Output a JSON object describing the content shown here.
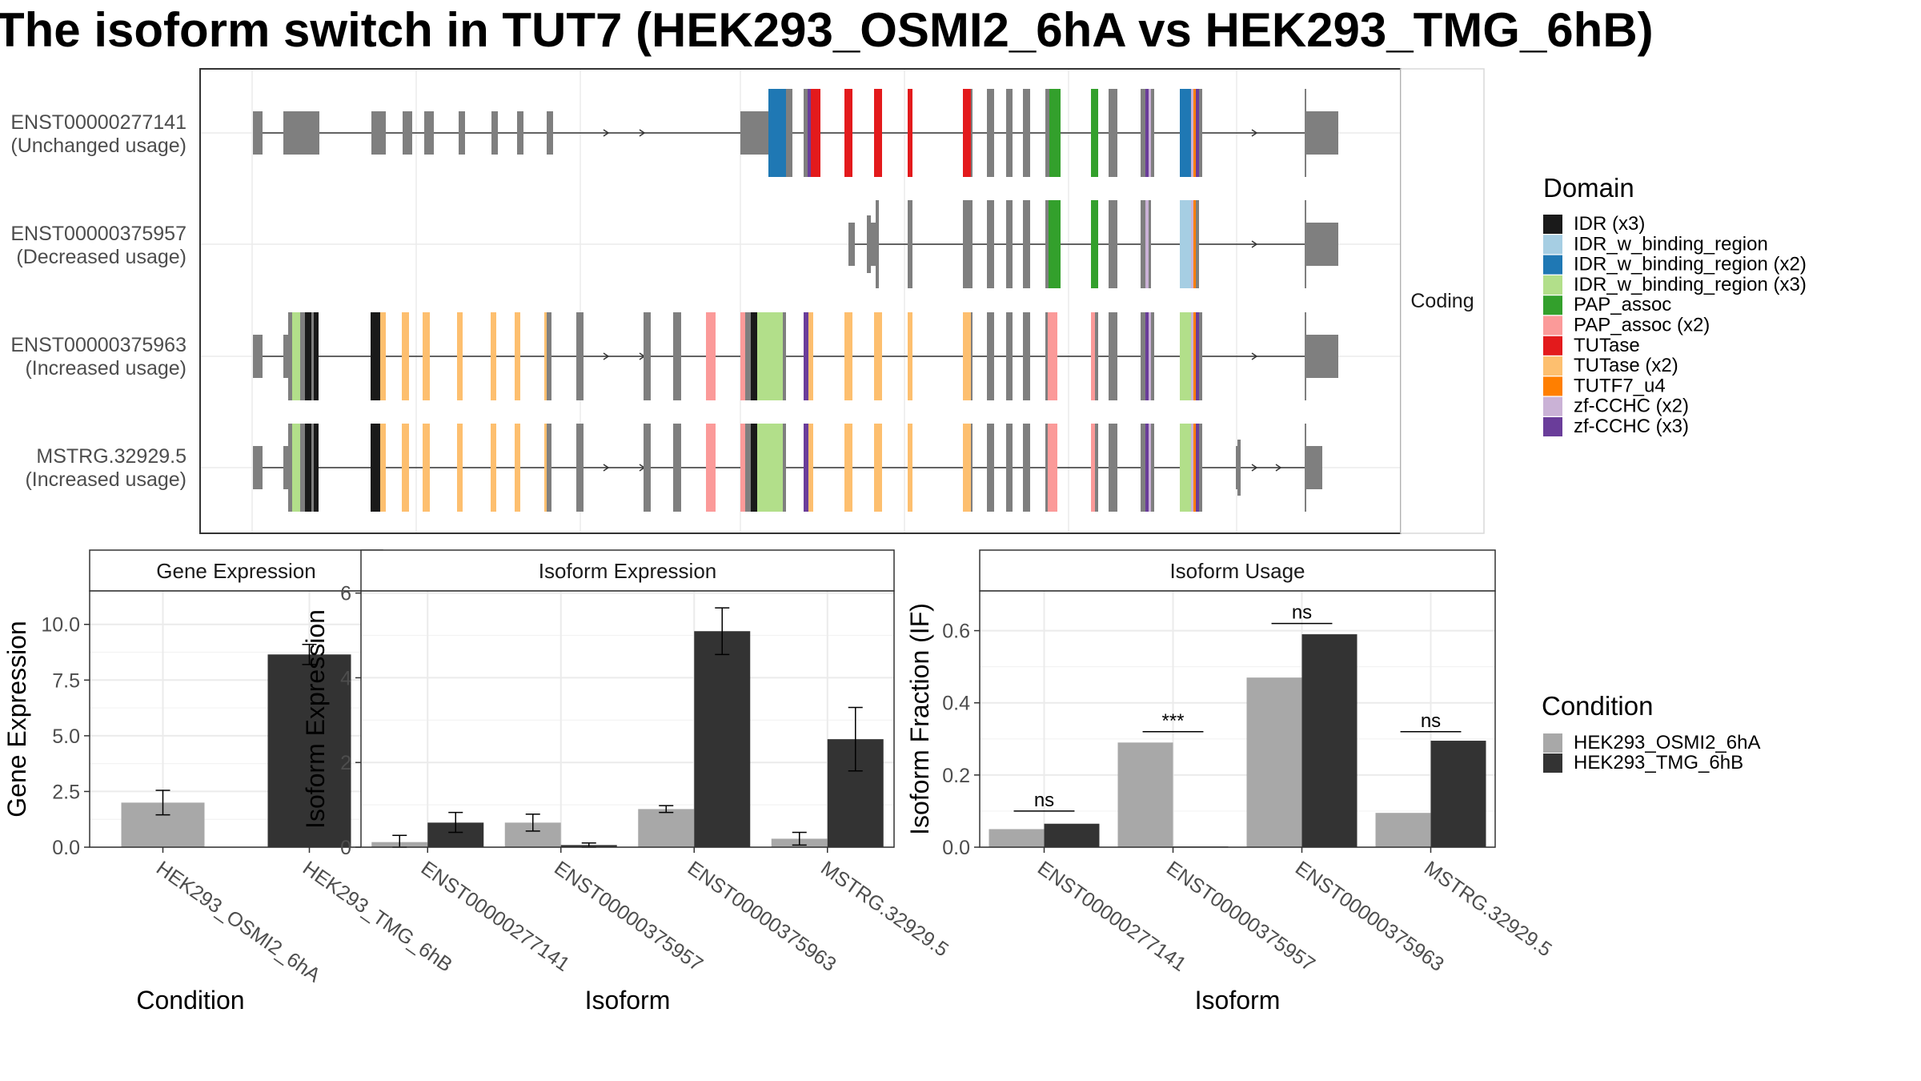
{
  "title": "The isoform switch in TUT7 (HEK293_OSMI2_6hA vs HEK293_TMG_6hB)",
  "colors": {
    "cond_a": "#a8a8a8",
    "cond_b": "#333333",
    "exon": "#7f7f7f",
    "IDR (x3)": "#1a1a1a",
    "IDR_w_binding_region": "#a6cee3",
    "IDR_w_binding_region (x2)": "#1f78b4",
    "IDR_w_binding_region (x3)": "#b2df8a",
    "PAP_assoc": "#33a02c",
    "PAP_assoc (x2)": "#fb9a99",
    "TUTase": "#e31a1c",
    "TUTase (x2)": "#fdbf6f",
    "TUTF7_u4": "#ff7f00",
    "zf-CCHC (x2)": "#cab2d6",
    "zf-CCHC (x3)": "#6a3d9a"
  },
  "structure": {
    "strip_label": "Coding",
    "transcripts": [
      {
        "id": "ENST00000277141",
        "usage": "(Unchanged usage)"
      },
      {
        "id": "ENST00000375957",
        "usage": "(Decreased usage)"
      },
      {
        "id": "ENST00000375963",
        "usage": "(Increased usage)"
      },
      {
        "id": "MSTRG.32929.5",
        "usage": "(Increased usage)"
      }
    ]
  },
  "legend": {
    "domain_title": "Domain",
    "domain_items": [
      "IDR (x3)",
      "IDR_w_binding_region",
      "IDR_w_binding_region (x2)",
      "IDR_w_binding_region (x3)",
      "PAP_assoc",
      "PAP_assoc (x2)",
      "TUTase",
      "TUTase (x2)",
      "TUTF7_u4",
      "zf-CCHC (x2)",
      "zf-CCHC (x3)"
    ],
    "condition_title": "Condition",
    "condition_items": [
      "HEK293_OSMI2_6hA",
      "HEK293_TMG_6hB"
    ]
  },
  "chart_data": [
    {
      "type": "bar",
      "panel": "Gene Expression",
      "xlabel": "Condition",
      "ylabel": "Gene Expression",
      "ylim": [
        0,
        11.5
      ],
      "yticks": [
        0.0,
        2.5,
        5.0,
        7.5,
        10.0
      ],
      "ytick_labels": [
        "0.0",
        "2.5",
        "5.0",
        "7.5",
        "10.0"
      ],
      "categories": [
        "HEK293_OSMI2_6hA",
        "HEK293_TMG_6hB"
      ],
      "values": [
        2.0,
        8.65
      ],
      "error_low": [
        1.45,
        8.2
      ],
      "error_high": [
        2.55,
        9.1
      ]
    },
    {
      "type": "bar",
      "panel": "Isoform Expression",
      "xlabel": "Isoform",
      "ylabel": "Isoform Expression",
      "ylim": [
        0,
        6.05
      ],
      "yticks": [
        0,
        2,
        4,
        6
      ],
      "ytick_labels": [
        "0",
        "2",
        "4",
        "6"
      ],
      "categories": [
        "ENST00000277141",
        "ENST00000375957",
        "ENST00000375963",
        "MSTRG.32929.5"
      ],
      "series": [
        {
          "name": "HEK293_OSMI2_6hA",
          "values": [
            0.12,
            0.58,
            0.9,
            0.2
          ],
          "error_low": [
            0.0,
            0.38,
            0.82,
            0.05
          ],
          "error_high": [
            0.28,
            0.78,
            0.98,
            0.35
          ]
        },
        {
          "name": "HEK293_TMG_6hB",
          "values": [
            0.58,
            0.05,
            5.1,
            2.55
          ],
          "error_low": [
            0.35,
            0.0,
            4.55,
            1.8
          ],
          "error_high": [
            0.82,
            0.1,
            5.65,
            3.3
          ]
        }
      ]
    },
    {
      "type": "bar",
      "panel": "Isoform Usage",
      "xlabel": "Isoform",
      "ylabel": "Isoform Fraction (IF)",
      "ylim": [
        0,
        0.71
      ],
      "yticks": [
        0.0,
        0.2,
        0.4,
        0.6
      ],
      "ytick_labels": [
        "0.0",
        "0.2",
        "0.4",
        "0.6"
      ],
      "categories": [
        "ENST00000277141",
        "ENST00000375957",
        "ENST00000375963",
        "MSTRG.32929.5"
      ],
      "series": [
        {
          "name": "HEK293_OSMI2_6hA",
          "values": [
            0.05,
            0.29,
            0.47,
            0.095
          ]
        },
        {
          "name": "HEK293_TMG_6hB",
          "values": [
            0.065,
            0.002,
            0.59,
            0.295
          ]
        }
      ],
      "significance": [
        "ns",
        "***",
        "ns",
        "ns"
      ],
      "significance_y": [
        0.1,
        0.32,
        0.62,
        0.32
      ]
    }
  ]
}
